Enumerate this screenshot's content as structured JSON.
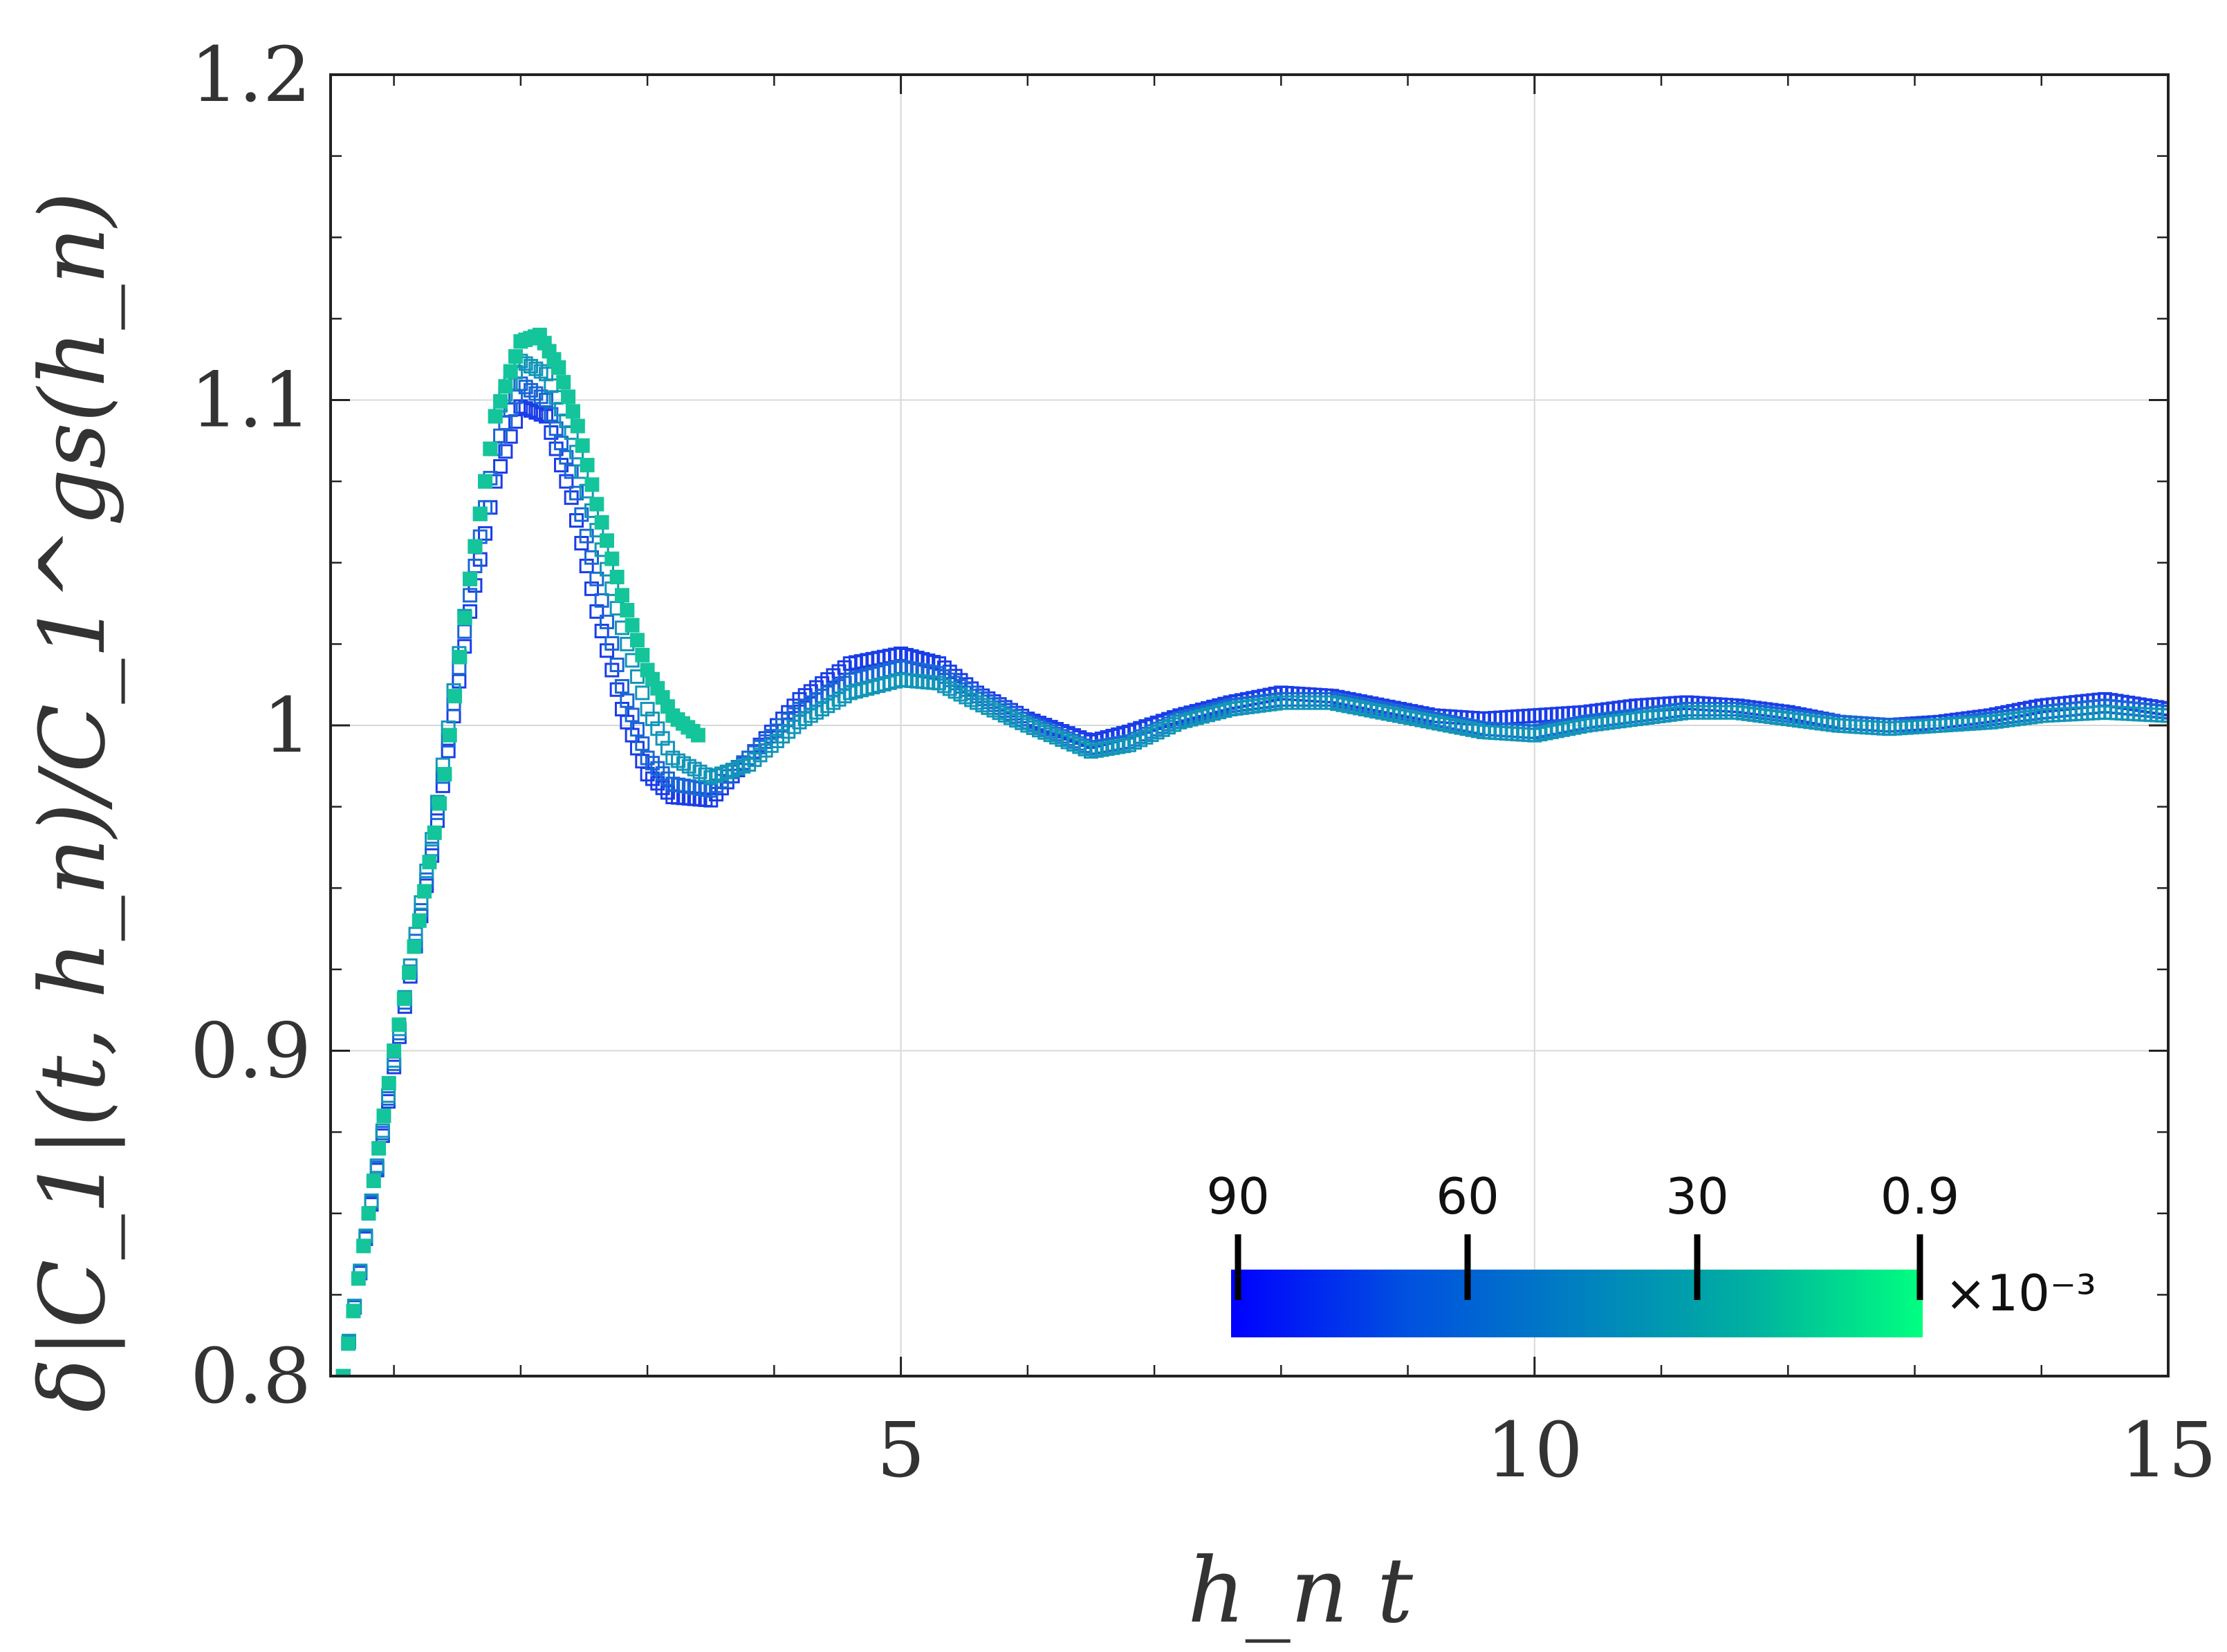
{
  "chart_data": {
    "type": "scatter",
    "title": "",
    "xlabel": "h_n t",
    "ylabel": "δ|C_1|(t, h_n)/C_1^gs(h_n)",
    "xlim": [
      0.5,
      15
    ],
    "ylim": [
      0.8,
      1.2
    ],
    "x_ticks": [
      "5",
      "10",
      "15"
    ],
    "x_tick_values": [
      5,
      10,
      15
    ],
    "y_ticks": [
      "0.8",
      "0.9",
      "1",
      "1.1",
      "1.2"
    ],
    "y_tick_values": [
      0.8,
      0.9,
      1.0,
      1.1,
      1.2
    ],
    "grid": true,
    "marker": "square",
    "colorbar": {
      "tick_labels": [
        "90",
        "60",
        "30",
        "0.9"
      ],
      "multiplier": "×10⁻³",
      "colors": [
        "#0000ff",
        "#0050e0",
        "#0080c0",
        "#00b0a0",
        "#00ff80"
      ],
      "placement": "bottom-right"
    },
    "series": [
      {
        "name": "90",
        "color": "#1a3de8",
        "x": [
          0.6,
          1.0,
          1.3,
          1.6,
          1.8,
          2.0,
          2.2,
          2.4,
          2.6,
          2.8,
          3.0,
          3.2,
          3.5,
          3.8,
          4.2,
          4.6,
          5.0,
          5.3,
          5.6,
          6.0,
          6.5,
          6.8,
          7.2,
          7.6,
          8.0,
          8.4,
          8.8,
          9.2,
          9.6,
          10.0,
          10.4,
          10.8,
          11.2,
          11.6,
          12.0,
          12.4,
          12.8,
          13.2,
          13.6,
          14.0,
          14.5,
          15.0
        ],
        "y": [
          0.8,
          0.895,
          0.96,
          1.035,
          1.075,
          1.098,
          1.095,
          1.07,
          1.035,
          1.005,
          0.985,
          0.978,
          0.977,
          0.99,
          1.008,
          1.019,
          1.022,
          1.019,
          1.01,
          1.002,
          0.995,
          0.998,
          1.003,
          1.007,
          1.01,
          1.009,
          1.006,
          1.003,
          1.002,
          1.003,
          1.004,
          1.006,
          1.007,
          1.006,
          1.004,
          1.001,
          1.0,
          1.001,
          1.003,
          1.006,
          1.008,
          1.005
        ]
      },
      {
        "name": "60",
        "color": "#1a66d6",
        "x": [
          0.6,
          1.0,
          1.3,
          1.6,
          1.8,
          2.0,
          2.2,
          2.4,
          2.6,
          2.8,
          3.0,
          3.2,
          3.5,
          3.8,
          4.2,
          4.6,
          5.0,
          5.3,
          5.6,
          6.0,
          6.5,
          6.8,
          7.2,
          7.6,
          8.0,
          8.4,
          8.8,
          9.2,
          9.6,
          10.0,
          10.4,
          10.8,
          11.2,
          11.6,
          12.0,
          12.4,
          12.8,
          13.2,
          13.6,
          14.0,
          14.5,
          15.0
        ],
        "y": [
          0.8,
          0.896,
          0.962,
          1.04,
          1.085,
          1.105,
          1.1,
          1.078,
          1.045,
          1.012,
          0.99,
          0.982,
          0.98,
          0.99,
          1.005,
          1.014,
          1.018,
          1.016,
          1.009,
          1.001,
          0.993,
          0.995,
          1.002,
          1.006,
          1.008,
          1.008,
          1.005,
          1.002,
          0.999,
          0.998,
          1.001,
          1.003,
          1.005,
          1.005,
          1.003,
          1.001,
          1.0,
          1.0,
          1.002,
          1.004,
          1.006,
          1.004
        ]
      },
      {
        "name": "30",
        "color": "#1295b8",
        "x": [
          0.6,
          1.0,
          1.3,
          1.6,
          1.8,
          2.0,
          2.2,
          2.4,
          2.6,
          2.8,
          3.0,
          3.2,
          3.5,
          3.8,
          4.2,
          4.6,
          5.0,
          5.3,
          5.6,
          6.0,
          6.5,
          6.8,
          7.2,
          7.6,
          8.0,
          8.4,
          8.8,
          9.2,
          9.6,
          10.0,
          10.4,
          10.8,
          11.2,
          11.6,
          12.0,
          12.4,
          12.8,
          13.2,
          13.6,
          14.0,
          14.5,
          15.0
        ],
        "y": [
          0.8,
          0.897,
          0.965,
          1.045,
          1.095,
          1.112,
          1.108,
          1.09,
          1.06,
          1.03,
          1.005,
          0.99,
          0.984,
          0.988,
          1.001,
          1.01,
          1.014,
          1.013,
          1.007,
          1.0,
          0.992,
          0.994,
          1.001,
          1.005,
          1.007,
          1.007,
          1.004,
          1.001,
          0.998,
          0.997,
          1.0,
          1.002,
          1.004,
          1.004,
          1.002,
          1.0,
          0.999,
          1.0,
          1.001,
          1.003,
          1.004,
          1.003
        ]
      },
      {
        "name": "0.9",
        "color": "#14c49a",
        "x": [
          0.6,
          0.8,
          1.0,
          1.2,
          1.4,
          1.6,
          1.8,
          2.0,
          2.15,
          2.3,
          2.45,
          2.6,
          2.8,
          3.0,
          3.2,
          3.4
        ],
        "y": [
          0.8,
          0.85,
          0.9,
          0.94,
          0.985,
          1.045,
          1.095,
          1.118,
          1.12,
          1.11,
          1.092,
          1.068,
          1.04,
          1.017,
          1.003,
          0.997
        ]
      }
    ]
  }
}
